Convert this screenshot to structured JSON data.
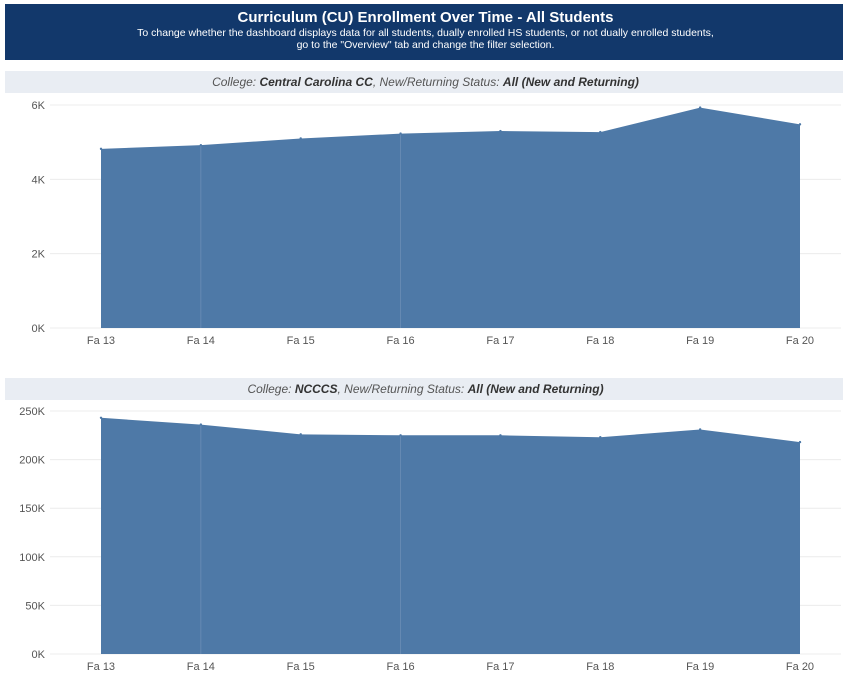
{
  "header": {
    "title": "Curriculum (CU) Enrollment Over Time - All Students",
    "subtitle_line1": "To change whether the dashboard displays data for all students, dually enrolled HS students, or not dually enrolled students,",
    "subtitle_line2": "go to the \"Overview\" tab and change the filter selection."
  },
  "panels": [
    {
      "college_label": "College:",
      "college": "Central Carolina CC",
      "status_label": "New/Returning Status:",
      "status": "All (New and Returning)"
    },
    {
      "college_label": "College:",
      "college": "NCCCS",
      "status_label": "New/Returning Status:",
      "status": "All (New and Returning)"
    }
  ],
  "colors": {
    "area": "#4e79a7",
    "header_bg": "#12386b",
    "band_bg": "#e9edf3"
  },
  "chart_data": [
    {
      "type": "area",
      "x": [
        "Fa 13",
        "Fa 14",
        "Fa 15",
        "Fa 16",
        "Fa 17",
        "Fa 18",
        "Fa 19",
        "Fa 20"
      ],
      "values": [
        4820,
        4920,
        5100,
        5230,
        5300,
        5270,
        5930,
        5480
      ],
      "ylim": [
        0,
        6000
      ],
      "yticks": [
        0,
        2000,
        4000,
        6000
      ],
      "ytick_labels": [
        "0K",
        "2K",
        "4K",
        "6K"
      ],
      "grid": true
    },
    {
      "type": "area",
      "x": [
        "Fa 13",
        "Fa 14",
        "Fa 15",
        "Fa 16",
        "Fa 17",
        "Fa 18",
        "Fa 19",
        "Fa 20"
      ],
      "values": [
        243000,
        236000,
        226000,
        225000,
        225000,
        223000,
        231000,
        218000
      ],
      "ylim": [
        0,
        250000
      ],
      "yticks": [
        0,
        50000,
        100000,
        150000,
        200000,
        250000
      ],
      "ytick_labels": [
        "0K",
        "50K",
        "100K",
        "150K",
        "200K",
        "250K"
      ],
      "grid": true
    }
  ]
}
